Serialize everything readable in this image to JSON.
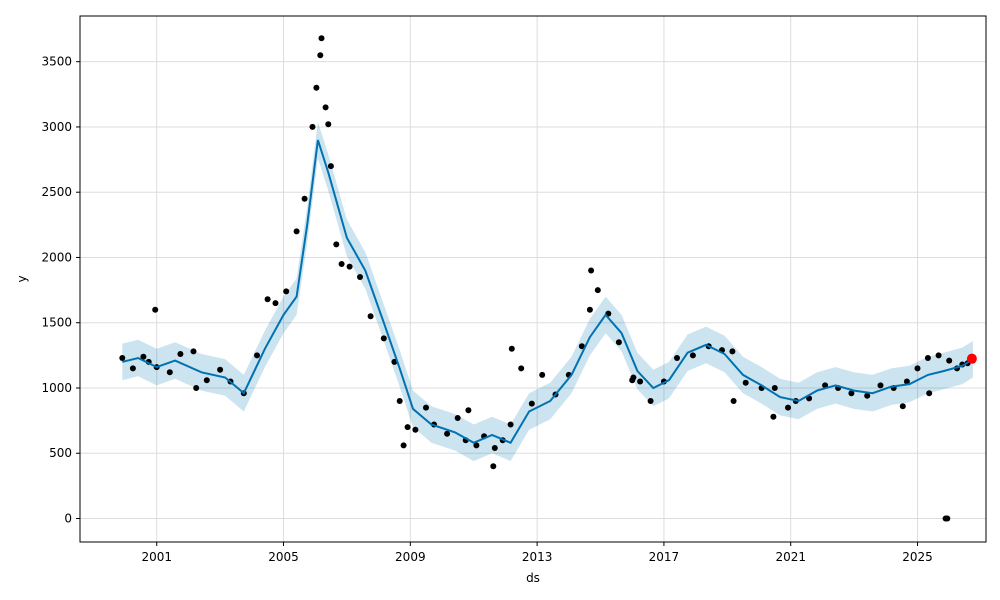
{
  "chart_data": {
    "type": "scatter",
    "xlabel": "ds",
    "ylabel": "y",
    "xlim": [
      "1998-08-01",
      "2027-03-01"
    ],
    "ylim": [
      -180,
      3850
    ],
    "xticks": [
      "2001",
      "2005",
      "2009",
      "2013",
      "2017",
      "2021",
      "2025"
    ],
    "yticks": [
      0,
      500,
      1000,
      1500,
      2000,
      2500,
      3000,
      3500
    ],
    "grid": true,
    "colors": {
      "observed": "#000000",
      "forecast": "#0072B2",
      "uncertainty": "#0072B2",
      "highlight": "#ff0000"
    },
    "series": [
      {
        "kind": "observed_points",
        "x": [
          "1999-12-01",
          "2000-04-01",
          "2000-08-01",
          "2000-10-01",
          "2001-01-01",
          "2001-06-01",
          "2001-10-01",
          "2002-03-01",
          "2002-08-01",
          "2003-01-01",
          "2003-05-01",
          "2003-10-01",
          "2004-03-01",
          "2004-07-01",
          "2004-10-01",
          "2005-02-01",
          "2005-06-01",
          "2005-09-01",
          "2005-12-01",
          "2006-01-15",
          "2006-03-01",
          "2006-05-01",
          "2006-07-01",
          "2006-09-01",
          "2006-11-01",
          "2007-02-01",
          "2007-06-01",
          "2007-10-01",
          "2008-03-01",
          "2008-07-01",
          "2008-09-01",
          "2008-12-01",
          "2009-03-01",
          "2009-07-01",
          "2009-10-01",
          "2010-03-01",
          "2010-07-01",
          "2010-10-01",
          "2011-02-01",
          "2011-05-01",
          "2011-09-01",
          "2011-12-01",
          "2012-03-01",
          "2012-07-01",
          "2012-11-01",
          "2013-03-01",
          "2013-08-01",
          "2014-01-01",
          "2014-06-01",
          "2014-09-01",
          "2014-12-01",
          "2015-04-01",
          "2015-08-01",
          "2016-01-01",
          "2016-04-01",
          "2016-08-01",
          "2017-01-01",
          "2017-06-01",
          "2017-12-01",
          "2018-06-01",
          "2018-11-01",
          "2019-03-01",
          "2019-08-01",
          "2020-02-01",
          "2020-07-01",
          "2020-12-01",
          "2021-03-01",
          "2021-08-01",
          "2022-02-01",
          "2022-07-01",
          "2022-12-01",
          "2023-06-01",
          "2023-11-01",
          "2024-04-01",
          "2024-09-01",
          "2025-01-01",
          "2025-05-01",
          "2025-09-01",
          "2026-01-01",
          "2026-04-01",
          "2026-06-01",
          "2026-08-01",
          "2026-10-01",
          "2000-12-15",
          "2002-04-01",
          "2006-03-15",
          "2006-06-01",
          "2008-10-15",
          "2010-11-01",
          "2011-08-15",
          "2012-03-15",
          "2014-09-15",
          "2016-01-15",
          "2019-03-15",
          "2020-06-15",
          "2024-07-15",
          "2025-05-15",
          "2025-11-20",
          "2025-12-10"
        ],
        "y": [
          1230,
          1150,
          1240,
          1200,
          1160,
          1120,
          1260,
          1280,
          1060,
          1140,
          1050,
          960,
          1250,
          1680,
          1650,
          1740,
          2200,
          2450,
          3000,
          3300,
          3550,
          3150,
          2700,
          2100,
          1950,
          1930,
          1850,
          1550,
          1380,
          1200,
          900,
          700,
          680,
          850,
          720,
          650,
          770,
          600,
          560,
          630,
          540,
          600,
          720,
          1150,
          880,
          1100,
          950,
          1100,
          1320,
          1600,
          1750,
          1570,
          1350,
          1060,
          1050,
          900,
          1050,
          1230,
          1250,
          1320,
          1290,
          1280,
          1040,
          1000,
          1000,
          850,
          900,
          920,
          1020,
          1000,
          960,
          940,
          1020,
          1000,
          1050,
          1150,
          1230,
          1250,
          1210,
          1150,
          1180,
          1190,
          1210,
          1600,
          1000,
          3680,
          3020,
          560,
          830,
          400,
          1300,
          1900,
          1080,
          900,
          780,
          860,
          960,
          0,
          0
        ]
      },
      {
        "kind": "forecast_line",
        "x": [
          "1999-12-01",
          "2000-06-01",
          "2001-01-01",
          "2001-08-01",
          "2002-06-01",
          "2003-03-01",
          "2003-10-01",
          "2004-06-01",
          "2005-01-01",
          "2005-06-01",
          "2005-10-01",
          "2006-02-01",
          "2006-06-01",
          "2007-01-01",
          "2007-08-01",
          "2008-03-01",
          "2008-09-01",
          "2009-02-01",
          "2009-09-01",
          "2010-06-01",
          "2011-01-01",
          "2011-08-01",
          "2012-03-01",
          "2012-10-01",
          "2013-06-01",
          "2014-02-01",
          "2014-09-01",
          "2015-03-01",
          "2015-09-01",
          "2016-03-01",
          "2016-09-01",
          "2017-03-01",
          "2017-10-01",
          "2018-05-01",
          "2018-12-01",
          "2019-07-01",
          "2020-02-01",
          "2020-09-01",
          "2021-04-01",
          "2021-11-01",
          "2022-06-01",
          "2023-01-01",
          "2023-08-01",
          "2024-03-01",
          "2024-10-01",
          "2025-05-01",
          "2025-11-01",
          "2026-06-01",
          "2026-10-01"
        ],
        "y": [
          1200,
          1230,
          1160,
          1210,
          1120,
          1080,
          960,
          1300,
          1560,
          1700,
          2250,
          2900,
          2650,
          2150,
          1900,
          1500,
          1150,
          840,
          720,
          660,
          580,
          640,
          580,
          820,
          900,
          1100,
          1390,
          1560,
          1420,
          1130,
          1000,
          1060,
          1270,
          1330,
          1260,
          1100,
          1020,
          930,
          900,
          980,
          1020,
          980,
          960,
          1010,
          1030,
          1100,
          1130,
          1170,
          1220
        ]
      },
      {
        "kind": "uncertainty_band",
        "x": [
          "1999-12-01",
          "2000-06-01",
          "2001-01-01",
          "2001-08-01",
          "2002-06-01",
          "2003-03-01",
          "2003-10-01",
          "2004-06-01",
          "2005-01-01",
          "2005-06-01",
          "2005-10-01",
          "2006-02-01",
          "2006-06-01",
          "2007-01-01",
          "2007-08-01",
          "2008-03-01",
          "2008-09-01",
          "2009-02-01",
          "2009-09-01",
          "2010-06-01",
          "2011-01-01",
          "2011-08-01",
          "2012-03-01",
          "2012-10-01",
          "2013-06-01",
          "2014-02-01",
          "2014-09-01",
          "2015-03-01",
          "2015-09-01",
          "2016-03-01",
          "2016-09-01",
          "2017-03-01",
          "2017-10-01",
          "2018-05-01",
          "2018-12-01",
          "2019-07-01",
          "2020-02-01",
          "2020-09-01",
          "2021-04-01",
          "2021-11-01",
          "2022-06-01",
          "2023-01-01",
          "2023-08-01",
          "2024-03-01",
          "2024-10-01",
          "2025-05-01",
          "2025-11-01",
          "2026-06-01",
          "2026-10-01"
        ],
        "lower": [
          1060,
          1090,
          1020,
          1070,
          980,
          940,
          820,
          1160,
          1420,
          1560,
          2110,
          2760,
          2510,
          2010,
          1760,
          1360,
          1010,
          700,
          580,
          520,
          440,
          500,
          440,
          680,
          760,
          960,
          1250,
          1420,
          1280,
          990,
          860,
          920,
          1130,
          1190,
          1120,
          960,
          880,
          790,
          760,
          840,
          880,
          840,
          820,
          870,
          890,
          960,
          990,
          1030,
          1080
        ],
        "upper": [
          1340,
          1370,
          1300,
          1350,
          1260,
          1220,
          1100,
          1440,
          1700,
          1840,
          2390,
          3040,
          2790,
          2290,
          2040,
          1640,
          1290,
          980,
          860,
          800,
          720,
          780,
          720,
          960,
          1040,
          1240,
          1530,
          1700,
          1560,
          1270,
          1140,
          1200,
          1410,
          1470,
          1400,
          1240,
          1160,
          1070,
          1040,
          1120,
          1160,
          1120,
          1100,
          1150,
          1170,
          1240,
          1270,
          1310,
          1360
        ]
      },
      {
        "kind": "highlight_point",
        "x": [
          "2026-09-20"
        ],
        "y": [
          1225
        ]
      }
    ]
  }
}
